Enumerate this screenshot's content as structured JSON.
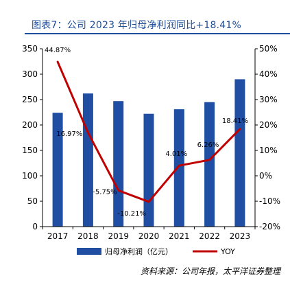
{
  "header": {
    "title": "图表7：公司 2023 年归母净利润同比+18.41%"
  },
  "source": "资料来源：公司年报，太平洋证券整理",
  "colors": {
    "bar": "#1f4ea3",
    "line": "#c00000",
    "title": "#1f4e9c"
  },
  "chart_data": {
    "type": "bar",
    "categories": [
      "2017",
      "2018",
      "2019",
      "2020",
      "2021",
      "2022",
      "2023"
    ],
    "series": [
      {
        "name": "归母净利润（亿元）",
        "type": "bar",
        "axis": "left",
        "values": [
          224,
          262,
          247,
          222,
          231,
          245,
          290
        ]
      },
      {
        "name": "YOY",
        "type": "line",
        "axis": "right",
        "values": [
          44.87,
          16.97,
          -5.75,
          -10.21,
          4.01,
          6.26,
          18.41
        ],
        "labels": [
          "44.87%",
          "16.97%",
          "-5.75%",
          "-10.21%",
          "4.01%",
          "6.26%",
          "18.41%"
        ]
      }
    ],
    "y_left": {
      "min": 0,
      "max": 350,
      "ticks": [
        0,
        50,
        100,
        150,
        200,
        250,
        300,
        350
      ],
      "tick_labels": [
        "0",
        "50",
        "100",
        "150",
        "200",
        "250",
        "300",
        "350"
      ]
    },
    "y_right": {
      "min": -20,
      "max": 50,
      "ticks": [
        -20,
        -10,
        0,
        10,
        20,
        30,
        40,
        50
      ],
      "tick_labels": [
        "-20%",
        "-10%",
        "0%",
        "10%",
        "20%",
        "30%",
        "40%",
        "50%"
      ]
    },
    "legend_position": "bottom",
    "grid": false
  }
}
